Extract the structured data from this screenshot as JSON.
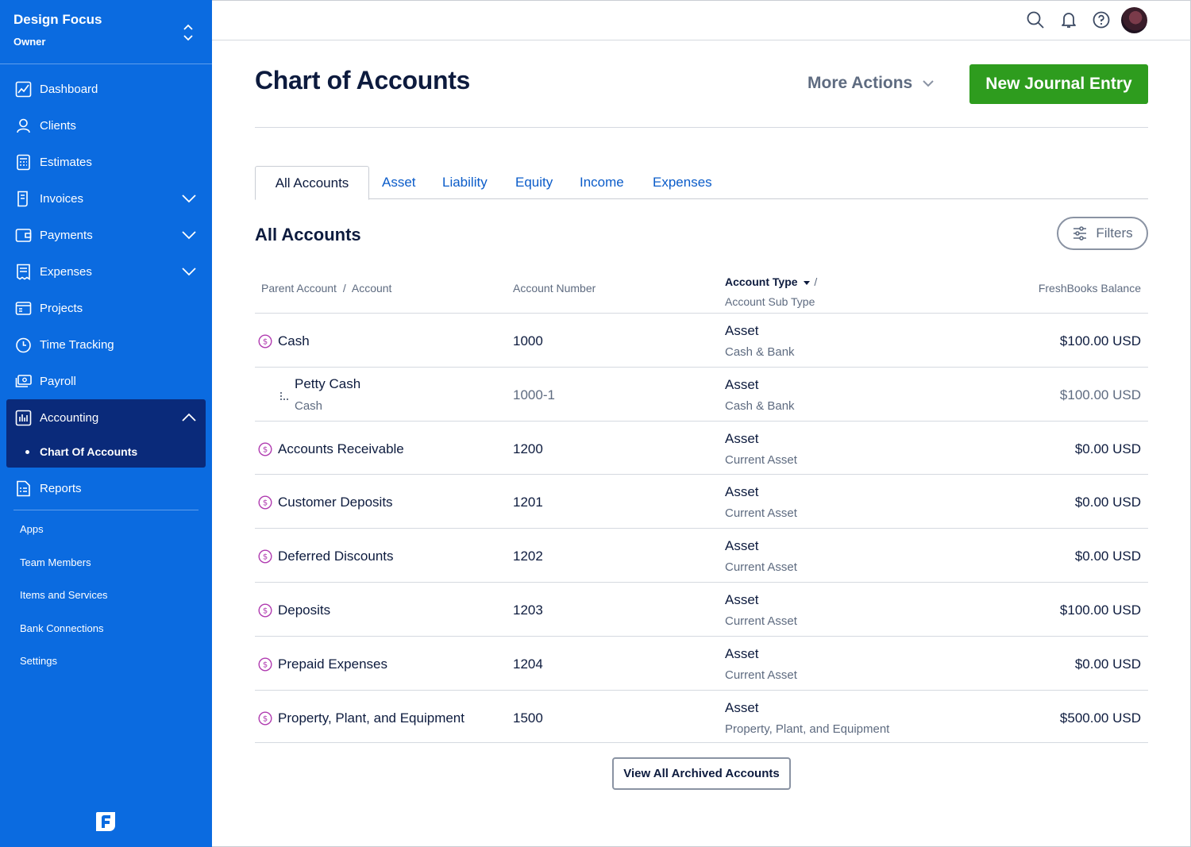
{
  "business": {
    "name": "Design Focus",
    "role": "Owner"
  },
  "nav": {
    "items": [
      {
        "label": "Dashboard",
        "icon": "dashboard-icon"
      },
      {
        "label": "Clients",
        "icon": "clients-icon"
      },
      {
        "label": "Estimates",
        "icon": "estimates-icon"
      },
      {
        "label": "Invoices",
        "icon": "invoices-icon"
      },
      {
        "label": "Payments",
        "icon": "payments-icon"
      },
      {
        "label": "Expenses",
        "icon": "expenses-icon"
      },
      {
        "label": "Projects",
        "icon": "projects-icon"
      },
      {
        "label": "Time Tracking",
        "icon": "clock-icon"
      },
      {
        "label": "Payroll",
        "icon": "payroll-icon"
      },
      {
        "label": "Accounting",
        "icon": "accounting-icon"
      },
      {
        "label": "Reports",
        "icon": "reports-icon"
      }
    ],
    "accounting_sub": "Chart Of Accounts",
    "secondary": [
      "Apps",
      "Team Members",
      "Items and Services",
      "Bank Connections",
      "Settings"
    ]
  },
  "page": {
    "title": "Chart of Accounts",
    "more_actions": "More Actions",
    "new_entry": "New Journal Entry",
    "tabs": [
      "All Accounts",
      "Asset",
      "Liability",
      "Equity",
      "Income",
      "Expenses"
    ],
    "section_title": "All Accounts",
    "filters": "Filters",
    "archived_button": "View All Archived Accounts"
  },
  "table": {
    "headers": {
      "parent_account": "Parent Account",
      "separator": "/",
      "account": "Account",
      "account_number": "Account Number",
      "account_type": "Account Type",
      "type_separator": "/",
      "account_sub_type": "Account Sub Type",
      "balance": "FreshBooks Balance"
    },
    "rows": [
      {
        "name": "Cash",
        "number": "1000",
        "type": "Asset",
        "sub_type": "Cash & Bank",
        "balance": "$100.00 USD"
      },
      {
        "name": "Petty Cash",
        "parent": "Cash",
        "number": "1000-1",
        "type": "Asset",
        "sub_type": "Cash & Bank",
        "balance": "$100.00 USD"
      },
      {
        "name": "Accounts Receivable",
        "number": "1200",
        "type": "Asset",
        "sub_type": "Current Asset",
        "balance": "$0.00 USD"
      },
      {
        "name": "Customer Deposits",
        "number": "1201",
        "type": "Asset",
        "sub_type": "Current Asset",
        "balance": "$0.00 USD"
      },
      {
        "name": "Deferred Discounts",
        "number": "1202",
        "type": "Asset",
        "sub_type": "Current Asset",
        "balance": "$0.00 USD"
      },
      {
        "name": "Deposits",
        "number": "1203",
        "type": "Asset",
        "sub_type": "Current Asset",
        "balance": "$100.00 USD"
      },
      {
        "name": "Prepaid Expenses",
        "number": "1204",
        "type": "Asset",
        "sub_type": "Current Asset",
        "balance": "$0.00 USD"
      },
      {
        "name": "Property, Plant, and Equipment",
        "number": "1500",
        "type": "Asset",
        "sub_type": "Property, Plant, and Equipment",
        "balance": "$500.00 USD"
      }
    ]
  },
  "colors": {
    "sidebar": "#0b6be0",
    "sidebar_active": "#0a2a7a",
    "primary_button": "#2e9c1e",
    "link": "#0b5cc9",
    "account_icon": "#b03bb0"
  }
}
